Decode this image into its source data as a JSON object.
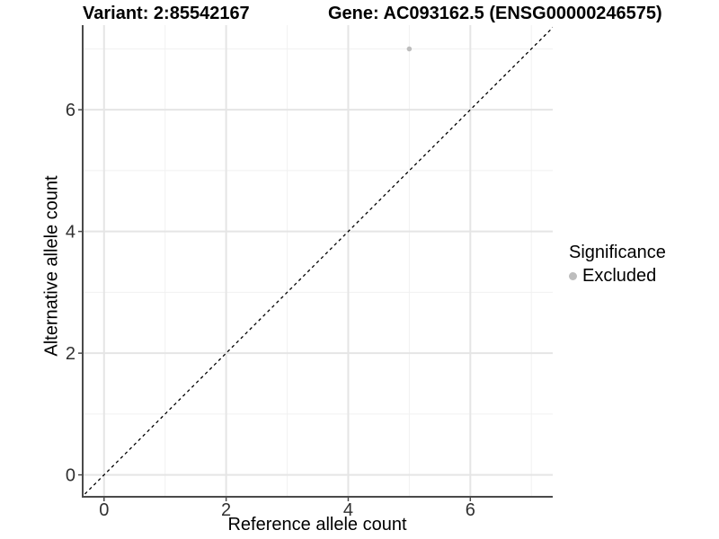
{
  "chart_data": {
    "type": "scatter",
    "title_left": "Variant: 2:85542167",
    "title_right": "Gene: AC093162.5 (ENSG00000246575)",
    "title": "Variant: 2:85542167   Gene: AC093162.5 (ENSG00000246575)",
    "xlabel": "Reference allele count",
    "ylabel": "Alternative allele count",
    "xlim": [
      -0.35,
      7.35
    ],
    "ylim": [
      -0.36,
      7.39
    ],
    "xticks": [
      0,
      2,
      4,
      6
    ],
    "yticks": [
      0,
      2,
      4,
      6
    ],
    "xticks_minor": [
      1,
      3,
      5,
      7
    ],
    "yticks_minor": [
      1,
      3,
      5,
      7
    ],
    "grid": "major+minor",
    "identity_line": {
      "style": "dashed",
      "slope": 1,
      "intercept": 0,
      "color": "#000000"
    },
    "series": [
      {
        "name": "Excluded",
        "color": "#bdbdbd",
        "points": [
          {
            "x": 5,
            "y": 7
          }
        ]
      }
    ],
    "legend": {
      "title": "Significance",
      "position": "right",
      "items": [
        {
          "label": "Excluded",
          "color": "#bdbdbd"
        }
      ]
    },
    "style": {
      "background": "#ffffff",
      "axis_color": "#4a4a4a",
      "grid_major_color": "#e5e5e5",
      "grid_minor_color": "#f1f1f1",
      "tick_label_color": "#303030",
      "point_color": "#bdbdbd"
    }
  }
}
